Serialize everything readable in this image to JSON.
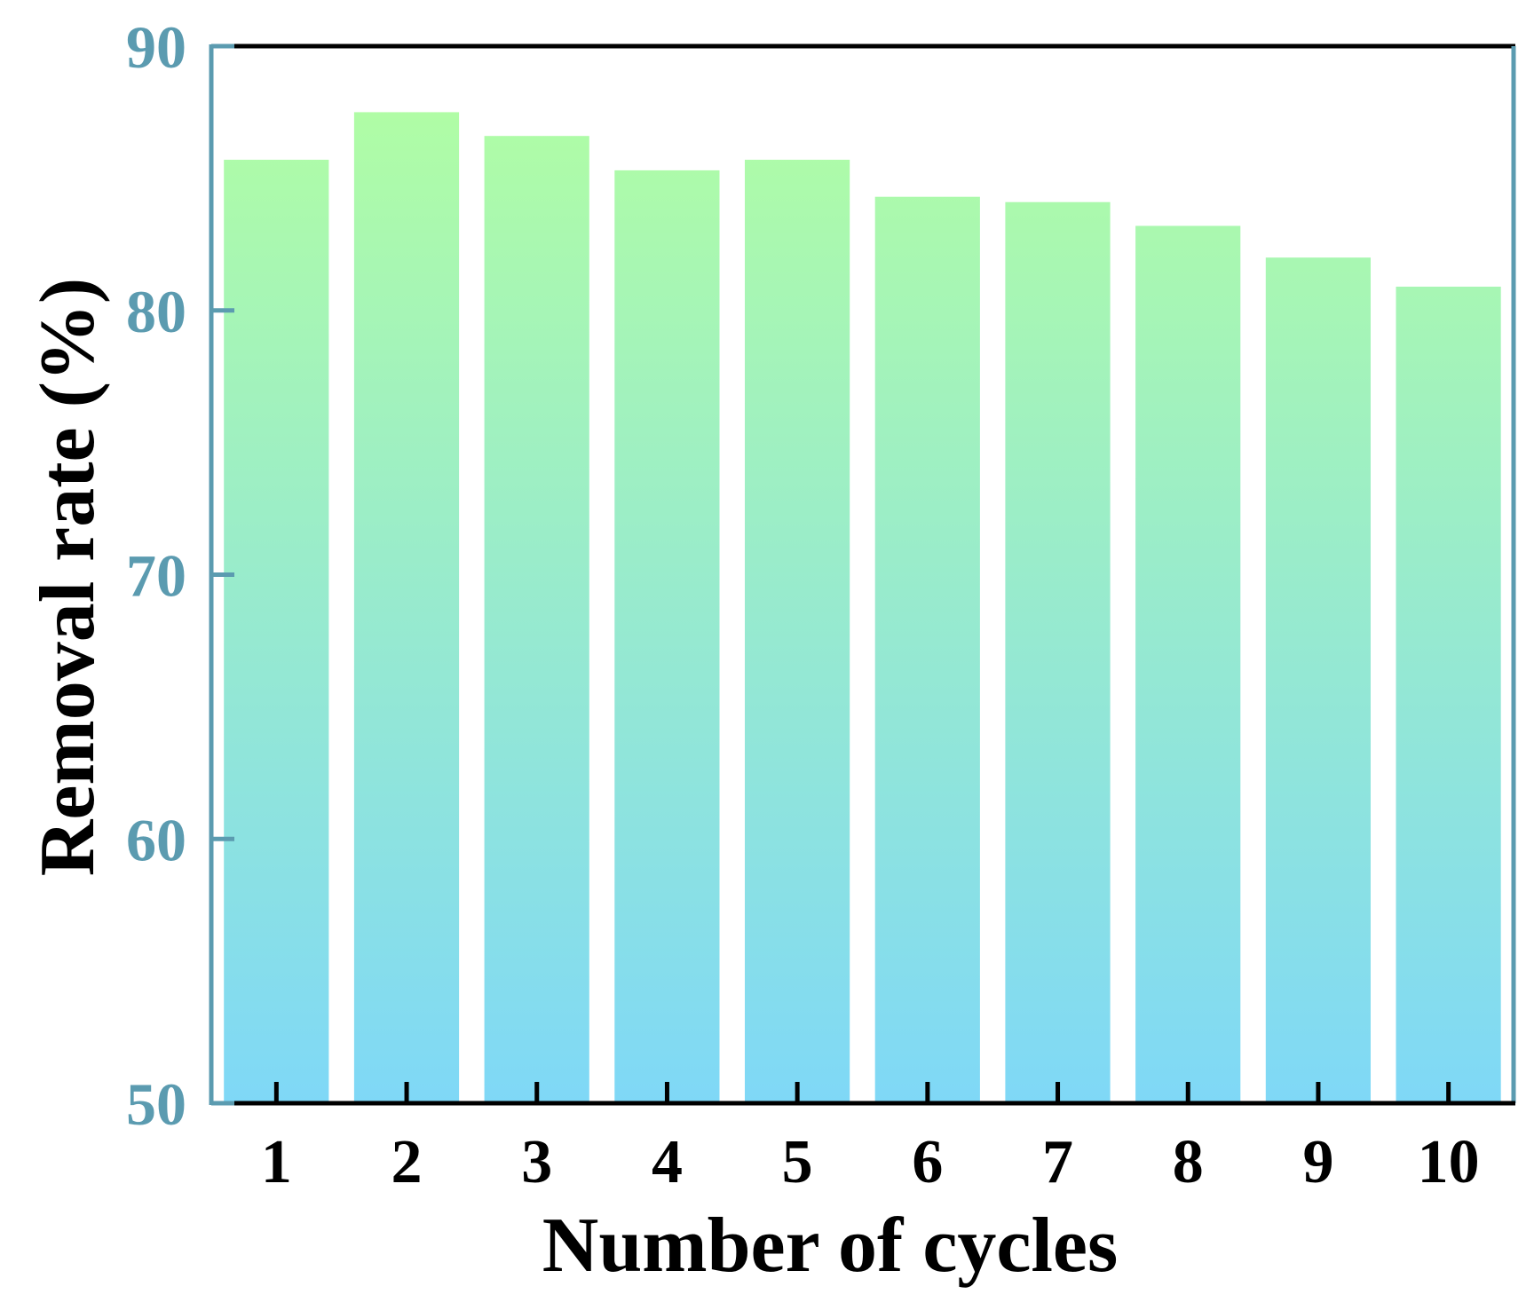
{
  "chart_data": {
    "type": "bar",
    "title": "",
    "xlabel": "Number of cycles",
    "ylabel": "Removal rate (%)",
    "categories": [
      "1",
      "2",
      "3",
      "4",
      "5",
      "6",
      "7",
      "8",
      "9",
      "10"
    ],
    "values": [
      85.7,
      87.5,
      86.6,
      85.3,
      85.7,
      84.3,
      84.1,
      83.2,
      82.0,
      80.9
    ],
    "ylim": [
      50,
      90
    ],
    "yticks": [
      "50",
      "60",
      "70",
      "80",
      "90"
    ],
    "grid": false,
    "legend": "none",
    "colors": {
      "bar_top": "#B3FFA0",
      "bar_bottom": "#7FD8F7",
      "left_axis": "#5B9BB0",
      "y_tick_labels": "#5B9BB0",
      "frame": "#000000",
      "text": "#000000"
    }
  }
}
